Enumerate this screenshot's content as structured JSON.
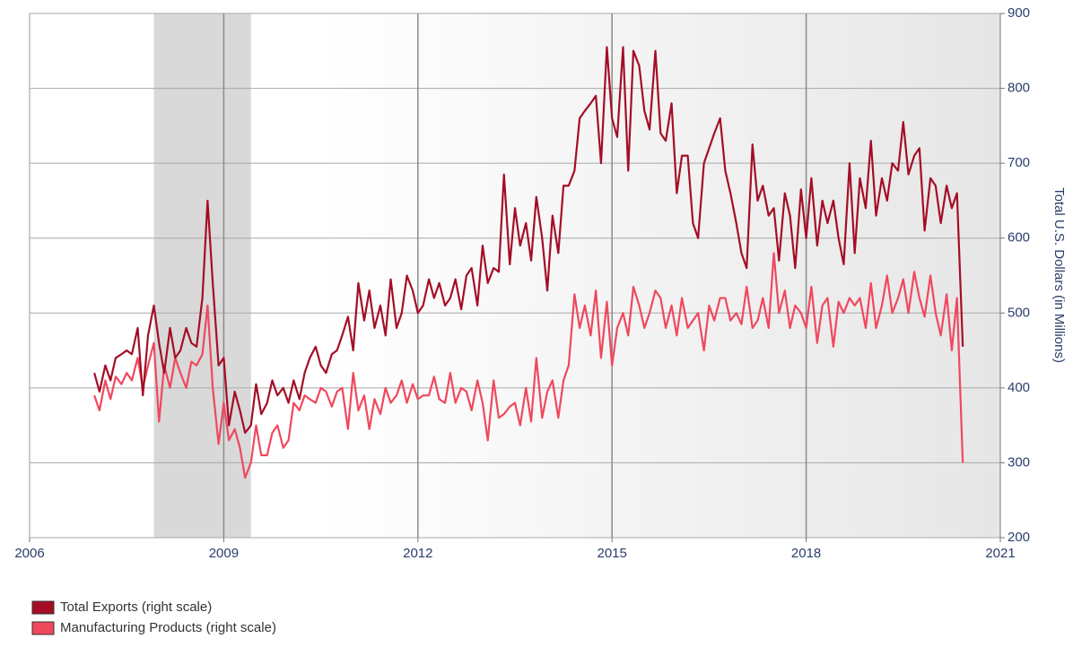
{
  "chart_data": {
    "type": "line",
    "y2label": "Total U.S. Dollars (in Millions)",
    "xlim": [
      2006,
      2021
    ],
    "xticks": [
      2006,
      2009,
      2012,
      2015,
      2018,
      2021
    ],
    "y2lim": [
      200,
      900
    ],
    "y2ticks": [
      200,
      300,
      400,
      500,
      600,
      700,
      800,
      900
    ],
    "grid": true,
    "legend": "bottom-left",
    "shade_x": [
      2007.92,
      2009.42
    ],
    "x": [
      2007,
      2007.08,
      2007.17,
      2007.25,
      2007.33,
      2007.42,
      2007.5,
      2007.58,
      2007.67,
      2007.75,
      2007.83,
      2007.92,
      2008,
      2008.08,
      2008.17,
      2008.25,
      2008.33,
      2008.42,
      2008.5,
      2008.58,
      2008.67,
      2008.75,
      2008.83,
      2008.92,
      2009,
      2009.08,
      2009.17,
      2009.25,
      2009.33,
      2009.42,
      2009.5,
      2009.58,
      2009.67,
      2009.75,
      2009.83,
      2009.92,
      2010,
      2010.08,
      2010.17,
      2010.25,
      2010.33,
      2010.42,
      2010.5,
      2010.58,
      2010.67,
      2010.75,
      2010.83,
      2010.92,
      2011,
      2011.08,
      2011.17,
      2011.25,
      2011.33,
      2011.42,
      2011.5,
      2011.58,
      2011.67,
      2011.75,
      2011.83,
      2011.92,
      2012,
      2012.08,
      2012.17,
      2012.25,
      2012.33,
      2012.42,
      2012.5,
      2012.58,
      2012.67,
      2012.75,
      2012.83,
      2012.92,
      2013,
      2013.08,
      2013.17,
      2013.25,
      2013.33,
      2013.42,
      2013.5,
      2013.58,
      2013.67,
      2013.75,
      2013.83,
      2013.92,
      2014,
      2014.08,
      2014.17,
      2014.25,
      2014.33,
      2014.42,
      2014.5,
      2014.58,
      2014.67,
      2014.75,
      2014.83,
      2014.92,
      2015,
      2015.08,
      2015.17,
      2015.25,
      2015.33,
      2015.42,
      2015.5,
      2015.58,
      2015.67,
      2015.75,
      2015.83,
      2015.92,
      2016,
      2016.08,
      2016.17,
      2016.25,
      2016.33,
      2016.42,
      2016.5,
      2016.58,
      2016.67,
      2016.75,
      2016.83,
      2016.92,
      2017,
      2017.08,
      2017.17,
      2017.25,
      2017.33,
      2017.42,
      2017.5,
      2017.58,
      2017.67,
      2017.75,
      2017.83,
      2017.92,
      2018,
      2018.08,
      2018.17,
      2018.25,
      2018.33,
      2018.42,
      2018.5,
      2018.58,
      2018.67,
      2018.75,
      2018.83,
      2018.92,
      2019,
      2019.08,
      2019.17,
      2019.25,
      2019.33,
      2019.42,
      2019.5,
      2019.58,
      2019.67,
      2019.75,
      2019.83,
      2019.92,
      2020,
      2020.08,
      2020.17,
      2020.25,
      2020.33,
      2020.42
    ],
    "series": [
      {
        "name": "Total Exports (right scale)",
        "color": "#a50d26",
        "axis": "y2",
        "values": [
          420,
          395,
          430,
          410,
          440,
          445,
          450,
          445,
          480,
          390,
          470,
          510,
          460,
          420,
          480,
          440,
          450,
          480,
          460,
          455,
          520,
          650,
          540,
          430,
          440,
          350,
          395,
          370,
          340,
          350,
          405,
          365,
          380,
          410,
          390,
          400,
          380,
          410,
          385,
          420,
          440,
          455,
          430,
          420,
          445,
          450,
          470,
          495,
          450,
          540,
          490,
          530,
          480,
          510,
          470,
          545,
          480,
          500,
          550,
          530,
          500,
          510,
          545,
          520,
          540,
          510,
          520,
          545,
          505,
          550,
          560,
          510,
          590,
          540,
          560,
          555,
          685,
          565,
          640,
          590,
          620,
          570,
          655,
          600,
          530,
          630,
          580,
          670,
          670,
          690,
          760,
          770,
          780,
          790,
          700,
          855,
          760,
          735,
          855,
          690,
          850,
          830,
          770,
          745,
          850,
          740,
          730,
          780,
          660,
          710,
          710,
          620,
          600,
          700,
          720,
          740,
          760,
          690,
          660,
          620,
          580,
          560,
          725,
          650,
          670,
          630,
          640,
          570,
          660,
          630,
          560,
          665,
          600,
          680,
          590,
          650,
          620,
          650,
          600,
          565,
          700,
          580,
          680,
          640,
          730,
          630,
          680,
          650,
          700,
          690,
          755,
          685,
          710,
          720,
          610,
          680,
          670,
          620,
          670,
          640,
          660,
          455
        ]
      },
      {
        "name": "Manufacturing Products (right scale)",
        "color": "#f0485d",
        "axis": "y2",
        "values": [
          390,
          370,
          410,
          385,
          415,
          405,
          420,
          410,
          440,
          400,
          430,
          460,
          355,
          430,
          400,
          440,
          420,
          400,
          435,
          430,
          445,
          510,
          400,
          325,
          380,
          330,
          345,
          320,
          280,
          300,
          350,
          310,
          310,
          340,
          350,
          320,
          330,
          380,
          370,
          390,
          385,
          380,
          400,
          395,
          375,
          395,
          400,
          345,
          420,
          370,
          390,
          345,
          385,
          365,
          400,
          380,
          390,
          410,
          380,
          405,
          385,
          390,
          390,
          415,
          385,
          380,
          420,
          380,
          400,
          395,
          370,
          410,
          380,
          330,
          410,
          360,
          365,
          375,
          380,
          350,
          400,
          355,
          440,
          360,
          395,
          410,
          360,
          410,
          430,
          525,
          480,
          510,
          470,
          530,
          440,
          515,
          430,
          480,
          500,
          470,
          535,
          510,
          480,
          500,
          530,
          520,
          480,
          510,
          470,
          520,
          480,
          490,
          500,
          450,
          510,
          490,
          520,
          520,
          490,
          500,
          485,
          535,
          480,
          490,
          520,
          480,
          580,
          500,
          530,
          480,
          510,
          500,
          480,
          535,
          460,
          510,
          520,
          455,
          515,
          500,
          520,
          510,
          520,
          480,
          540,
          480,
          510,
          550,
          500,
          520,
          545,
          500,
          555,
          520,
          495,
          550,
          500,
          470,
          525,
          450,
          520,
          300
        ]
      }
    ]
  }
}
